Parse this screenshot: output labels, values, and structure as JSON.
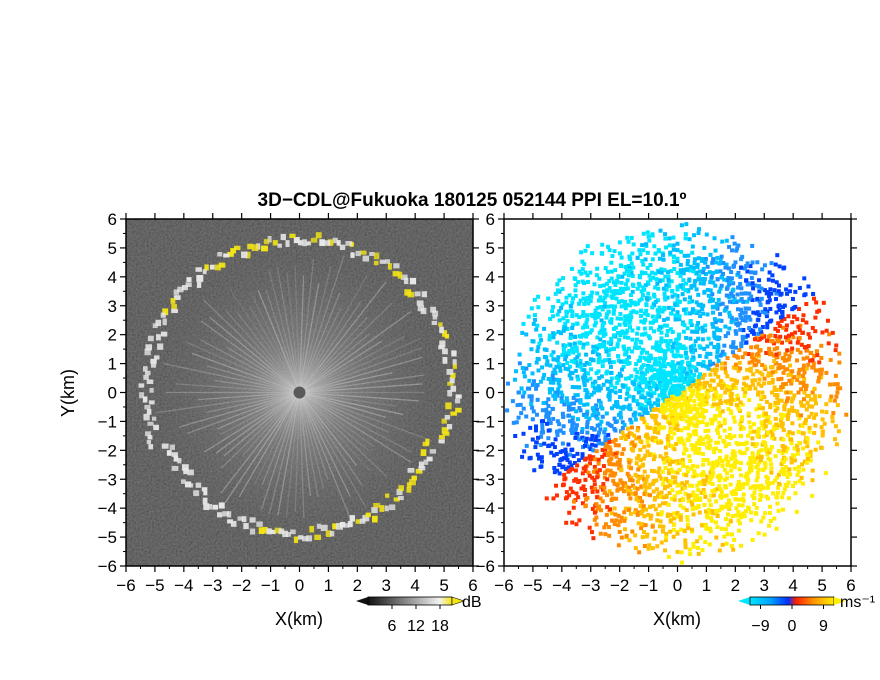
{
  "title": "3D−CDL@Fukuoka 180125 052144 PPI EL=10.1º",
  "colors": {
    "background": "#ffffff",
    "reflectivity_bg": "#2a2a2a",
    "echo_ring_white": "#e8e8e8",
    "echo_ring_yellow": "#f4e614",
    "doppler_negative": [
      "#00e5ff",
      "#00bfff",
      "#1e90ff",
      "#0040ff"
    ],
    "doppler_positive": [
      "#ffee00",
      "#ffc000",
      "#ff8c00",
      "#ff3000"
    ]
  },
  "chart_data": [
    {
      "type": "heatmap",
      "panel": "reflectivity",
      "xlabel": "X(km)",
      "ylabel": "Y(km)",
      "xlim": [
        -6,
        6
      ],
      "ylim": [
        -6,
        6
      ],
      "x_ticks": [
        "−6",
        "−5",
        "−4",
        "−3",
        "−2",
        "−1",
        "0",
        "1",
        "2",
        "3",
        "4",
        "5",
        "6"
      ],
      "y_ticks": [
        "6",
        "5",
        "4",
        "3",
        "2",
        "1",
        "0",
        "−1",
        "−2",
        "−3",
        "−4",
        "−5",
        "−6"
      ],
      "colorbar": {
        "unit": "dB",
        "ticks": [
          "6",
          "12",
          "18"
        ],
        "range": [
          0,
          21
        ]
      },
      "echo_boundary_radius_km": 5.3,
      "grid": false
    },
    {
      "type": "heatmap",
      "panel": "doppler_velocity",
      "xlabel": "X(km)",
      "ylabel": "",
      "xlim": [
        -6,
        6
      ],
      "ylim": [
        -6,
        6
      ],
      "x_ticks": [
        "−6",
        "−5",
        "−4",
        "−3",
        "−2",
        "−1",
        "0",
        "1",
        "2",
        "3",
        "4",
        "5",
        "6"
      ],
      "y_ticks": [
        "6",
        "5",
        "4",
        "3",
        "2",
        "1",
        "0",
        "−1",
        "−2",
        "−3",
        "−4",
        "−5",
        "−6"
      ],
      "colorbar": {
        "unit": "ms⁻¹",
        "ticks": [
          "−9",
          "0",
          "9"
        ],
        "range": [
          -12,
          12
        ]
      },
      "zero_velocity_azimuth_deg": 35,
      "grid": false
    }
  ]
}
